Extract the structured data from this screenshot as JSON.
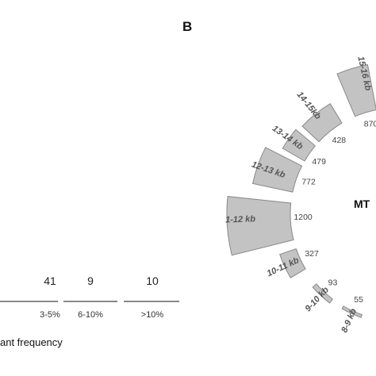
{
  "panel_b_label": "B",
  "center_label": "MT",
  "footer_text": "ant frequency",
  "chart_data": [
    {
      "type": "bar",
      "categories": [
        "3-5%",
        "6-10%",
        ">10%"
      ],
      "values": [
        41,
        9,
        10
      ],
      "xlabel": "ant frequency"
    },
    {
      "type": "bar",
      "layout": "radial",
      "categories": [
        "15-16 kb",
        "14-15kb",
        "13-14 kb",
        "12-13 kb",
        "1-12 kb",
        "10-11 kb",
        "9-10 kb",
        "8-9 kb"
      ],
      "values": [
        870,
        428,
        479,
        772,
        1200,
        327,
        93,
        55
      ],
      "value_labels": [
        "870",
        "428",
        "479",
        "772",
        "1200",
        "327",
        "93",
        "55"
      ],
      "colors": {
        "sector_fill": "#c3c3c3",
        "sector_stroke": "#888888"
      }
    }
  ]
}
